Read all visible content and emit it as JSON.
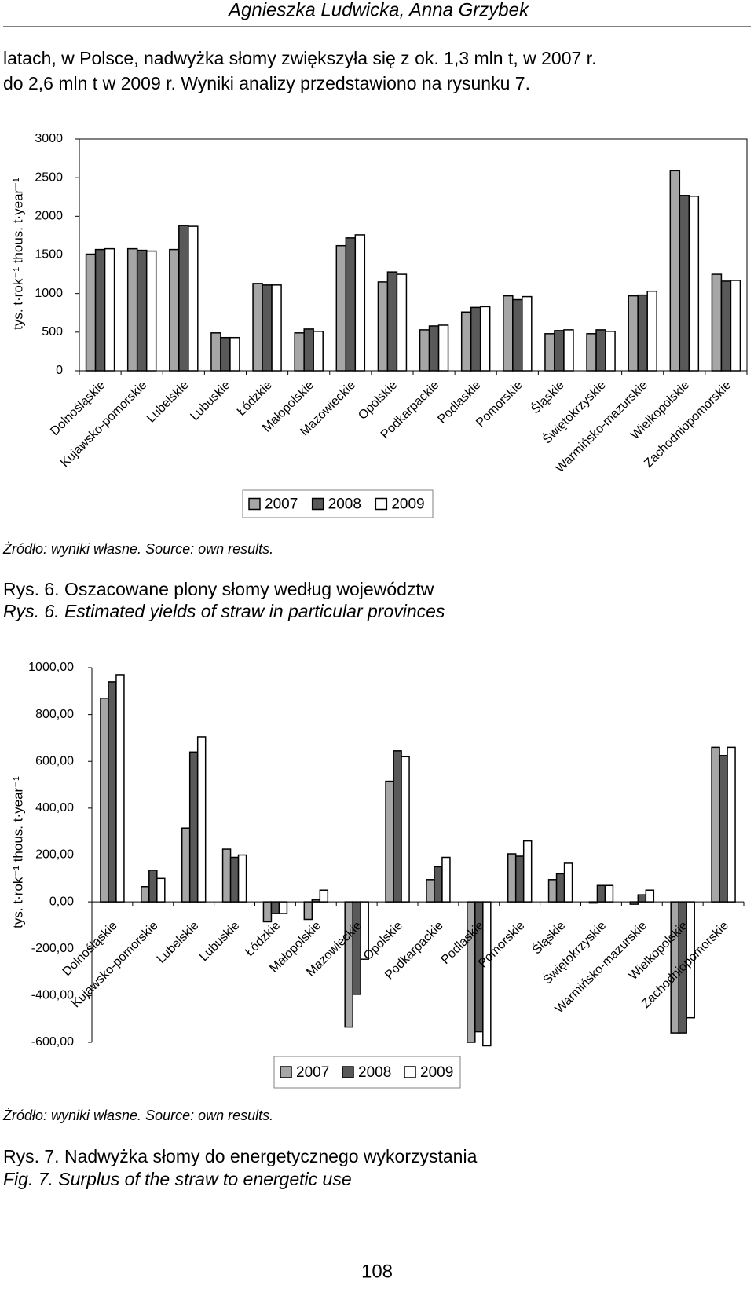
{
  "header": "Agnieszka Ludwicka, Anna Grzybek",
  "intro": [
    "latach, w Polsce, nadwyżka słomy zwiększyła się z ok. 1,3 mln t, w 2007 r.",
    "do 2,6 mln t w 2009 r. Wyniki analizy przedstawiono na rysunku 7."
  ],
  "chart_data": [
    {
      "type": "bar",
      "y_label": "tys. t·rok⁻¹   thous. t·year⁻¹",
      "categories": [
        "Dolnośląskie",
        "Kujawsko-pomorskie",
        "Lubelskie",
        "Lubuskie",
        "Łódzkie",
        "Małopolskie",
        "Mazowieckie",
        "Opolskie",
        "Podkarpackie",
        "Podlaskie",
        "Pomorskie",
        "Śląskie",
        "Świętokrzyskie",
        "Warmińsko-mazurskie",
        "Wielkopolskie",
        "Zachodniopomorskie"
      ],
      "series": [
        {
          "name": "2007",
          "color": "#a6a6a6",
          "values": [
            1510,
            1580,
            1570,
            490,
            1130,
            490,
            1620,
            1150,
            530,
            760,
            970,
            480,
            480,
            970,
            2590,
            1250
          ]
        },
        {
          "name": "2008",
          "color": "#595959",
          "values": [
            1570,
            1560,
            1880,
            430,
            1110,
            540,
            1720,
            1280,
            580,
            820,
            920,
            520,
            530,
            980,
            2270,
            1160
          ]
        },
        {
          "name": "2009",
          "color": "#ffffff",
          "values": [
            1580,
            1550,
            1870,
            430,
            1110,
            510,
            1760,
            1250,
            590,
            830,
            960,
            530,
            510,
            1030,
            2260,
            1170
          ]
        }
      ],
      "ylim": [
        0,
        3000
      ],
      "yticks": [
        0,
        500,
        1000,
        1500,
        2000,
        2500,
        3000
      ],
      "grid": false,
      "legend": "bottom"
    },
    {
      "type": "bar",
      "y_label": "tys. t·rok⁻¹   thous. t·year⁻¹",
      "categories": [
        "Dolnośląskie",
        "Kujawsko-pomorskie",
        "Lubelskie",
        "Lubuskie",
        "Łódzkie",
        "Małopolskie",
        "Mazowieckie",
        "Opolskie",
        "Podkarpackie",
        "Podlaskie",
        "Pomorskie",
        "Śląskie",
        "Świętokrzyskie",
        "Warmińsko-mazurskie",
        "Wielkopolskie",
        "Zachodniopomorskie"
      ],
      "series": [
        {
          "name": "2007",
          "color": "#a6a6a6",
          "values": [
            870,
            65,
            315,
            225,
            -85,
            -75,
            -535,
            515,
            95,
            -600,
            205,
            95,
            -5,
            -10,
            -560,
            660
          ]
        },
        {
          "name": "2008",
          "color": "#595959",
          "values": [
            940,
            135,
            640,
            190,
            -50,
            10,
            -395,
            645,
            150,
            -555,
            195,
            120,
            70,
            30,
            -560,
            625
          ]
        },
        {
          "name": "2009",
          "color": "#ffffff",
          "values": [
            970,
            100,
            705,
            200,
            -50,
            50,
            -245,
            620,
            190,
            -615,
            260,
            165,
            70,
            50,
            -495,
            660
          ]
        }
      ],
      "ylim": [
        -600,
        1000
      ],
      "yticks": [
        {
          "value": -600,
          "label": "-600,00"
        },
        {
          "value": -400,
          "label": "-400,00"
        },
        {
          "value": -200,
          "label": "-200,00"
        },
        {
          "value": 0,
          "label": "0,00"
        },
        {
          "value": 200,
          "label": "200,00"
        },
        {
          "value": 400,
          "label": "400,00"
        },
        {
          "value": 600,
          "label": "600,00"
        },
        {
          "value": 800,
          "label": "800,00"
        },
        {
          "value": 1000,
          "label": "1000,00"
        }
      ],
      "grid": false,
      "legend": "bottom"
    }
  ],
  "figures": [
    {
      "source": "Żródło: wyniki własne. Source: own results.",
      "caption": [
        "Rys. 6. Oszacowane plony słomy według województw",
        "Rys. 6. Estimated yields of straw in particular provinces"
      ]
    },
    {
      "source": "Żródło: wyniki własne. Source: own results.",
      "caption": [
        "Rys. 7. Nadwyżka słomy do energetycznego wykorzystania",
        "Fig. 7. Surplus of the straw to energetic use"
      ]
    }
  ],
  "page_number": "108"
}
